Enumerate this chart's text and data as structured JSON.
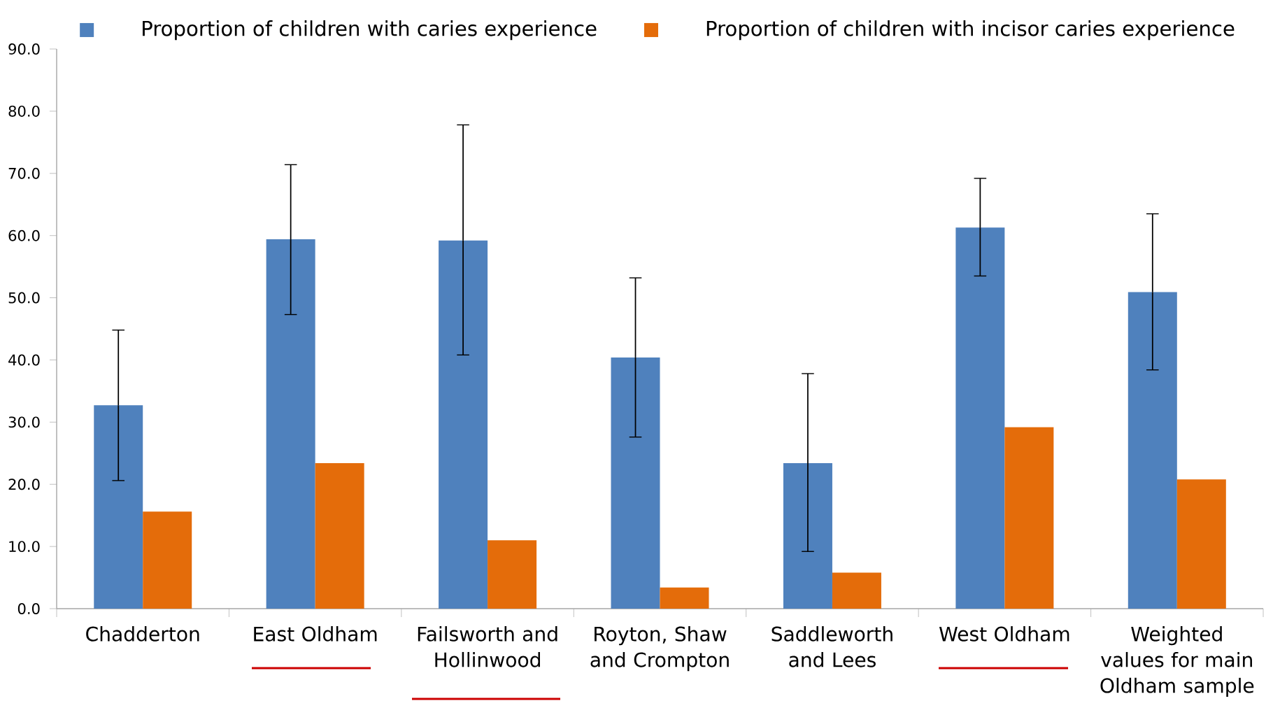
{
  "chart_data": {
    "type": "bar",
    "categories": [
      "Chadderton",
      "East Oldham",
      "Failsworth and Hollinwood",
      "Royton, Shaw and Crompton",
      "Saddleworth and Lees",
      "West Oldham",
      "Weighted values for main Oldham sample"
    ],
    "series": [
      {
        "name": "Proportion of children with caries experience",
        "color": "#4f81bd",
        "values": [
          32.7,
          59.4,
          59.2,
          40.4,
          23.4,
          61.3,
          50.9
        ],
        "errors": [
          [
            20.6,
            44.8
          ],
          [
            47.3,
            71.4
          ],
          [
            40.8,
            77.8
          ],
          [
            27.6,
            53.2
          ],
          [
            9.2,
            37.8
          ],
          [
            53.5,
            69.2
          ],
          [
            38.4,
            63.5
          ]
        ]
      },
      {
        "name": "Proportion of children with incisor caries experience",
        "color": "#e46c0a",
        "values": [
          15.6,
          23.4,
          11.0,
          3.4,
          5.8,
          29.2,
          20.8
        ]
      }
    ],
    "ylim": [
      0,
      90
    ],
    "yticks": [
      {
        "value": 0,
        "label": "0.0"
      },
      {
        "value": 10,
        "label": "10.0"
      },
      {
        "value": 20,
        "label": "20.0"
      },
      {
        "value": 30,
        "label": "30.0"
      },
      {
        "value": 40,
        "label": "40.0"
      },
      {
        "value": 50,
        "label": "50.0"
      },
      {
        "value": 60,
        "label": "60.0"
      },
      {
        "value": 70,
        "label": "70.0"
      },
      {
        "value": 80,
        "label": "80.0"
      },
      {
        "value": 90,
        "label": "90.0"
      }
    ],
    "grid": false,
    "legend": "top"
  }
}
